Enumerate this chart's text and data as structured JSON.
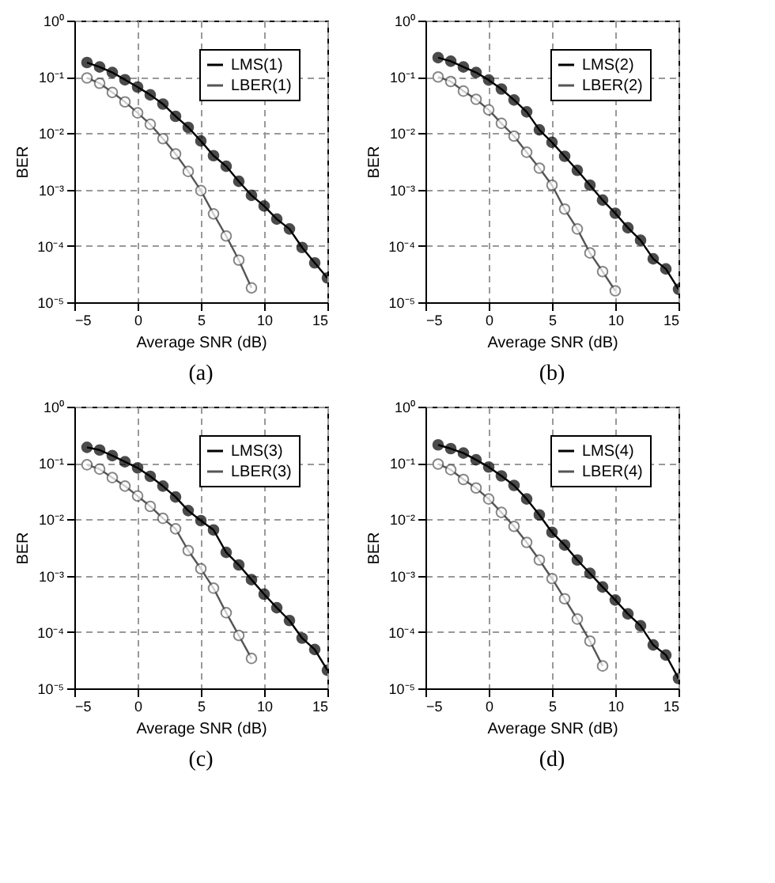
{
  "chart_data": [
    {
      "type": "line",
      "xlabel": "Average SNR (dB)",
      "ylabel": "BER",
      "annotations": [
        "(a)"
      ],
      "log": "y",
      "grid": true,
      "legend": "top right",
      "marker": "circle",
      "xlim": [
        -5,
        15
      ],
      "xticks": [
        -5,
        0,
        5,
        10,
        15
      ],
      "ylim": [
        1e-05,
        1
      ],
      "yticks": [
        {
          "value": 1,
          "label": "10⁰"
        },
        {
          "value": 0.1,
          "label": "10⁻¹"
        },
        {
          "value": 0.01,
          "label": "10⁻²"
        },
        {
          "value": 0.001,
          "label": "10⁻³"
        },
        {
          "value": 0.0001,
          "label": "10⁻⁴"
        },
        {
          "value": 1e-05,
          "label": "10⁻⁵"
        }
      ],
      "series": [
        {
          "name": "LMS(1)",
          "color": "#000000",
          "x": [
            -4,
            -3,
            -2,
            -1,
            0,
            1,
            2,
            3,
            4,
            5,
            6,
            7,
            8,
            9,
            10,
            11,
            12,
            13,
            14,
            15
          ],
          "values": [
            0.18,
            0.15,
            0.12,
            0.089,
            0.066,
            0.048,
            0.033,
            0.02,
            0.0127,
            0.0073,
            0.004,
            0.0026,
            0.0014,
            0.00079,
            0.00051,
            0.0003,
            0.0002,
            9.4e-05,
            5e-05,
            2.7e-05
          ]
        },
        {
          "name": "LBER(1)",
          "color": "#555555",
          "x": [
            -4,
            -3,
            -2,
            -1,
            0,
            1,
            2,
            3,
            4,
            5,
            6,
            7,
            8,
            9
          ],
          "values": [
            0.096,
            0.077,
            0.053,
            0.036,
            0.023,
            0.0144,
            0.008,
            0.0043,
            0.0021,
            0.00096,
            0.00037,
            0.00015,
            5.6e-05,
            1.8e-05
          ]
        }
      ]
    },
    {
      "type": "line",
      "xlabel": "Average SNR (dB)",
      "ylabel": "BER",
      "annotations": [
        "(b)"
      ],
      "log": "y",
      "grid": true,
      "legend": "top right",
      "marker": "circle",
      "xlim": [
        -5,
        15
      ],
      "xticks": [
        -5,
        0,
        5,
        10,
        15
      ],
      "ylim": [
        1e-05,
        1
      ],
      "yticks": [
        {
          "value": 1,
          "label": "10⁰"
        },
        {
          "value": 0.1,
          "label": "10⁻¹"
        },
        {
          "value": 0.01,
          "label": "10⁻²"
        },
        {
          "value": 0.001,
          "label": "10⁻³"
        },
        {
          "value": 0.0001,
          "label": "10⁻⁴"
        },
        {
          "value": 1e-05,
          "label": "10⁻⁵"
        }
      ],
      "series": [
        {
          "name": "LMS(2)",
          "color": "#000000",
          "x": [
            -4,
            -3,
            -2,
            -1,
            0,
            1,
            2,
            3,
            4,
            5,
            6,
            7,
            8,
            9,
            10,
            11,
            12,
            13,
            14,
            15
          ],
          "values": [
            0.22,
            0.19,
            0.15,
            0.12,
            0.088,
            0.061,
            0.039,
            0.024,
            0.0115,
            0.0069,
            0.0039,
            0.0022,
            0.0012,
            0.00065,
            0.00038,
            0.00021,
            0.000126,
            5.9e-05,
            3.9e-05,
            1.7e-05
          ]
        },
        {
          "name": "LBER(2)",
          "color": "#555555",
          "x": [
            -4,
            -3,
            -2,
            -1,
            0,
            1,
            2,
            3,
            4,
            5,
            6,
            7,
            8,
            9,
            10
          ],
          "values": [
            0.1,
            0.083,
            0.056,
            0.04,
            0.026,
            0.015,
            0.0089,
            0.0046,
            0.0024,
            0.0012,
            0.00045,
            0.0002,
            7.5e-05,
            3.5e-05,
            1.6e-05
          ]
        }
      ]
    },
    {
      "type": "line",
      "xlabel": "Average SNR (dB)",
      "ylabel": "BER",
      "annotations": [
        "(c)"
      ],
      "log": "y",
      "grid": true,
      "legend": "top right",
      "marker": "circle",
      "xlim": [
        -5,
        15
      ],
      "xticks": [
        -5,
        0,
        5,
        10,
        15
      ],
      "ylim": [
        1e-05,
        1
      ],
      "yticks": [
        {
          "value": 1,
          "label": "10⁰"
        },
        {
          "value": 0.1,
          "label": "10⁻¹"
        },
        {
          "value": 0.01,
          "label": "10⁻²"
        },
        {
          "value": 0.001,
          "label": "10⁻³"
        },
        {
          "value": 0.0001,
          "label": "10⁻⁴"
        },
        {
          "value": 1e-05,
          "label": "10⁻⁵"
        }
      ],
      "series": [
        {
          "name": "LMS(3)",
          "color": "#000000",
          "x": [
            -4,
            -3,
            -2,
            -1,
            0,
            1,
            2,
            3,
            4,
            5,
            6,
            7,
            8,
            9,
            10,
            11,
            12,
            13,
            14,
            15
          ],
          "values": [
            0.19,
            0.17,
            0.135,
            0.105,
            0.082,
            0.058,
            0.039,
            0.025,
            0.0143,
            0.0095,
            0.0065,
            0.0026,
            0.00155,
            0.00085,
            0.00047,
            0.00027,
            0.00016,
            7.8e-05,
            4.9e-05,
            2.1e-05
          ]
        },
        {
          "name": "LBER(3)",
          "color": "#555555",
          "x": [
            -4,
            -3,
            -2,
            -1,
            0,
            1,
            2,
            3,
            4,
            5,
            6,
            7,
            8,
            9
          ],
          "values": [
            0.093,
            0.078,
            0.055,
            0.039,
            0.026,
            0.017,
            0.0104,
            0.0068,
            0.0028,
            0.00133,
            0.0006,
            0.00022,
            8.7e-05,
            3.4e-05
          ]
        }
      ]
    },
    {
      "type": "line",
      "xlabel": "Average SNR (dB)",
      "ylabel": "BER",
      "annotations": [
        "(d)"
      ],
      "log": "y",
      "grid": true,
      "legend": "top right",
      "marker": "circle",
      "xlim": [
        -5,
        15
      ],
      "xticks": [
        -5,
        0,
        5,
        10,
        15
      ],
      "ylim": [
        1e-05,
        1
      ],
      "yticks": [
        {
          "value": 1,
          "label": "10⁰"
        },
        {
          "value": 0.1,
          "label": "10⁻¹"
        },
        {
          "value": 0.01,
          "label": "10⁻²"
        },
        {
          "value": 0.001,
          "label": "10⁻³"
        },
        {
          "value": 0.0001,
          "label": "10⁻⁴"
        },
        {
          "value": 1e-05,
          "label": "10⁻⁵"
        }
      ],
      "series": [
        {
          "name": "LMS(4)",
          "color": "#000000",
          "x": [
            -4,
            -3,
            -2,
            -1,
            0,
            1,
            2,
            3,
            4,
            5,
            6,
            7,
            8,
            9,
            10,
            11,
            12,
            13,
            14,
            15
          ],
          "values": [
            0.21,
            0.18,
            0.15,
            0.114,
            0.085,
            0.059,
            0.04,
            0.023,
            0.012,
            0.0059,
            0.0035,
            0.0019,
            0.0011,
            0.00063,
            0.00037,
            0.00021,
            0.000129,
            5.9e-05,
            3.9e-05,
            1.5e-05
          ]
        },
        {
          "name": "LBER(4)",
          "color": "#555555",
          "x": [
            -4,
            -3,
            -2,
            -1,
            0,
            1,
            2,
            3,
            4,
            5,
            6,
            7,
            8,
            9
          ],
          "values": [
            0.096,
            0.076,
            0.051,
            0.036,
            0.023,
            0.0133,
            0.0075,
            0.0039,
            0.0019,
            0.00089,
            0.00039,
            0.00017,
            6.9e-05,
            2.5e-05
          ]
        }
      ]
    }
  ]
}
